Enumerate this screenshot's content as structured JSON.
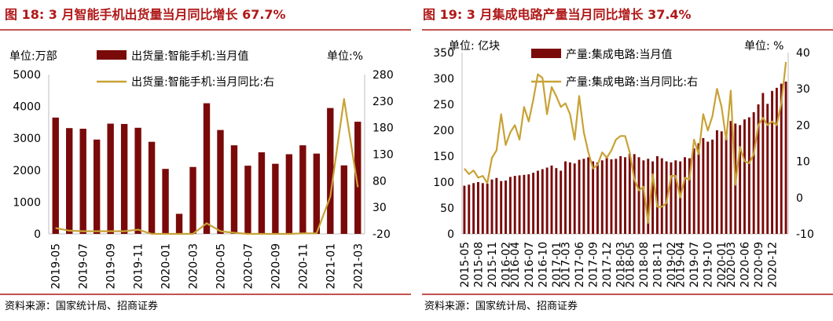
{
  "colors": {
    "bar": "#7a0a0a",
    "line": "#c8a236",
    "title": "#b01818",
    "axis": "#bfbfbf"
  },
  "source_left": "资料来源：国家统计局、招商证券",
  "source_right": "资料来源：国家统计局、招商证券",
  "chart_data": [
    {
      "type": "bar+line",
      "title": "图 18:  3 月智能手机出货量当月同比增长 67.7%",
      "left_unit": "单位:万部",
      "right_unit": "单位:%",
      "legend": {
        "bar": "出货量:智能手机:当月值",
        "line": "出货量:智能手机:当月同比:右"
      },
      "y_left": {
        "min": 0,
        "max": 5000,
        "ticks": [
          "0",
          "1000",
          "2000",
          "3000",
          "4000",
          "5000"
        ]
      },
      "y_right": {
        "min": -20,
        "max": 280,
        "ticks": [
          "-20",
          "30",
          "80",
          "130",
          "180",
          "230",
          "280"
        ]
      },
      "x_ticks": [
        "2019-05",
        "2019-07",
        "2019-09",
        "2019-11",
        "2020-01",
        "2020-03",
        "2020-05",
        "2020-07",
        "2020-09",
        "2020-11",
        "2021-01",
        "2021-03"
      ],
      "categories": [
        "2019-05",
        "2019-06",
        "2019-07",
        "2019-08",
        "2019-09",
        "2019-10",
        "2019-11",
        "2019-12",
        "2020-01",
        "2020-02",
        "2020-03",
        "2020-04",
        "2020-05",
        "2020-06",
        "2020-07",
        "2020-08",
        "2020-09",
        "2020-10",
        "2020-11",
        "2020-12",
        "2021-01",
        "2021-02",
        "2021-03"
      ],
      "series": [
        {
          "name": "出货量:智能手机:当月值",
          "kind": "bar",
          "axis": "left",
          "values": [
            3650,
            3320,
            3300,
            2960,
            3460,
            3450,
            3330,
            2890,
            2040,
            630,
            2100,
            4100,
            3260,
            2780,
            2140,
            2560,
            2200,
            2500,
            2780,
            2520,
            3950,
            2150,
            3520
          ]
        },
        {
          "name": "出货量:智能手机:当月同比:右",
          "kind": "line",
          "axis": "right",
          "values": [
            -9,
            -14,
            -15,
            -15,
            -15,
            -15,
            -12,
            -22,
            -38,
            -55,
            -20,
            0,
            -15,
            -18,
            -34,
            -20,
            -36,
            -24,
            -19,
            -19,
            50,
            234,
            68
          ]
        }
      ]
    },
    {
      "type": "bar+line",
      "title": "图 19:  3 月集成电路产量当月同比增长 37.4%",
      "left_unit": "单位:  亿块",
      "right_unit": "单位:  %",
      "legend": {
        "bar": "产量:集成电路:当月值",
        "line": "产量:集成电路:当月同比:右"
      },
      "y_left": {
        "min": 0,
        "max": 350,
        "ticks": [
          "0",
          "50",
          "100",
          "150",
          "200",
          "250",
          "300",
          "350"
        ]
      },
      "y_right": {
        "min": -10,
        "max": 40,
        "ticks": [
          "-10",
          "0",
          "10",
          "20",
          "30",
          "40"
        ]
      },
      "x_ticks": [
        "2015-05",
        "2015-08",
        "2015-11",
        "2016-02",
        "2016-04",
        "2016-07",
        "2016-10",
        "2017-01",
        "2017-03",
        "2017-06",
        "2017-09",
        "2017-12",
        "2018-03",
        "2018-05",
        "2018-08",
        "2018-11",
        "2019-02",
        "2019-04",
        "2019-07",
        "2019-10",
        "2020-01",
        "2020-03",
        "2020-06",
        "2020-09",
        "2020-12"
      ],
      "categories": [
        "2015-05",
        "2015-06",
        "2015-07",
        "2015-08",
        "2015-09",
        "2015-10",
        "2015-11",
        "2015-12",
        "2016-01",
        "2016-02",
        "2016-03",
        "2016-04",
        "2016-05",
        "2016-06",
        "2016-07",
        "2016-08",
        "2016-09",
        "2016-10",
        "2016-11",
        "2016-12",
        "2017-01",
        "2017-02",
        "2017-03",
        "2017-04",
        "2017-05",
        "2017-06",
        "2017-07",
        "2017-08",
        "2017-09",
        "2017-10",
        "2017-11",
        "2017-12",
        "2018-01",
        "2018-02",
        "2018-03",
        "2018-04",
        "2018-05",
        "2018-06",
        "2018-07",
        "2018-08",
        "2018-09",
        "2018-10",
        "2018-11",
        "2018-12",
        "2019-01",
        "2019-02",
        "2019-03",
        "2019-04",
        "2019-05",
        "2019-06",
        "2019-07",
        "2019-08",
        "2019-09",
        "2019-10",
        "2019-11",
        "2019-12",
        "2020-01",
        "2020-02",
        "2020-03",
        "2020-04",
        "2020-05",
        "2020-06",
        "2020-07",
        "2020-08",
        "2020-09",
        "2020-10",
        "2020-11",
        "2020-12",
        "2021-01",
        "2021-02",
        "2021-03"
      ],
      "series": [
        {
          "name": "产量:集成电路:当月值",
          "kind": "bar",
          "axis": "left",
          "values": [
            93,
            95,
            98,
            100,
            98,
            97,
            105,
            108,
            102,
            103,
            110,
            112,
            113,
            114,
            115,
            118,
            122,
            125,
            128,
            132,
            127,
            122,
            140,
            138,
            136,
            143,
            145,
            148,
            140,
            138,
            142,
            150,
            144,
            145,
            150,
            148,
            155,
            154,
            148,
            142,
            145,
            140,
            150,
            146,
            140,
            138,
            142,
            140,
            148,
            146,
            165,
            175,
            185,
            178,
            182,
            200,
            198,
            190,
            218,
            213,
            210,
            221,
            225,
            235,
            250,
            272,
            251,
            276,
            282,
            290,
            294
          ]
        },
        {
          "name": "产量:集成电路:当月同比:右",
          "kind": "line",
          "axis": "right",
          "values": [
            8,
            6.5,
            7.5,
            5.5,
            6,
            4,
            11,
            13,
            23,
            14.5,
            18,
            20,
            16,
            25,
            21,
            27,
            34,
            33,
            23,
            30.5,
            28,
            25,
            26,
            23,
            16,
            28,
            18,
            12.5,
            8,
            9,
            12.5,
            11,
            13,
            16,
            17,
            17,
            12.5,
            5,
            2,
            3,
            -7,
            6.5,
            -2.5,
            -2.5,
            -1.5,
            6,
            6,
            0,
            5.5,
            5,
            16,
            12,
            23,
            18.5,
            22.5,
            30,
            25,
            16,
            29.5,
            3.5,
            14,
            10,
            9.5,
            12,
            20,
            22,
            20,
            21,
            20,
            26,
            37.4
          ]
        }
      ]
    }
  ]
}
